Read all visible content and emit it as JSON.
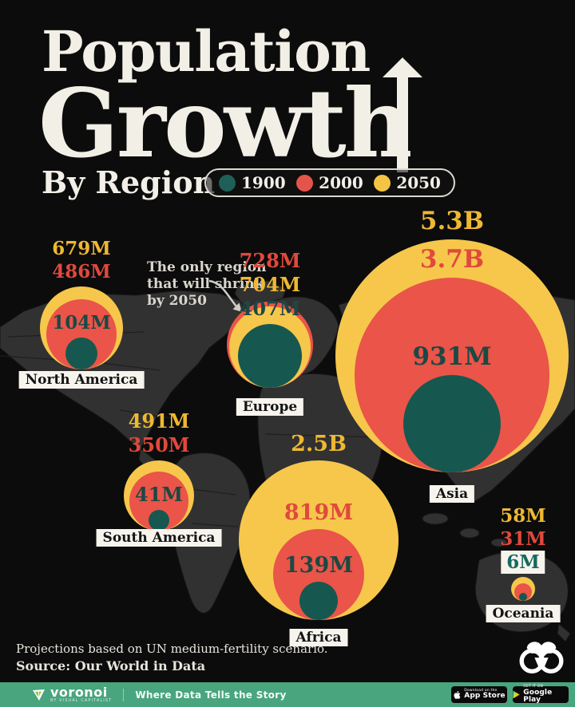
{
  "header": {
    "title_line1": "Population",
    "title_line2": "Growth",
    "subtitle": "By Region"
  },
  "legend": {
    "items": [
      {
        "year": "1900",
        "color": "#1e6057"
      },
      {
        "year": "2000",
        "color": "#e5544a"
      },
      {
        "year": "2050",
        "color": "#f4c443"
      }
    ]
  },
  "annotation": {
    "lines": [
      "The only region",
      "that will shrink",
      "by 2050"
    ]
  },
  "chart_data": {
    "type": "bubble",
    "title": "Population Growth By Region",
    "subtitle": "By Region",
    "unit": "population (millions)",
    "legend_position": "top",
    "note": "Nested circles per region, circle area proportional to population, circles share a common bottom tangent",
    "categories": [
      "North America",
      "Europe",
      "Asia",
      "South America",
      "Africa",
      "Oceania"
    ],
    "series": [
      {
        "name": "1900",
        "color": "#16584f",
        "label_color": "#1c4843",
        "values_millions": [
          104,
          407,
          931,
          41,
          139,
          6
        ],
        "labels": [
          "104M",
          "407M",
          "931M",
          "41M",
          "139M",
          "6M"
        ]
      },
      {
        "name": "2000",
        "color": "#ea5449",
        "label_color": "#e0493c",
        "values_millions": [
          486,
          728,
          3700,
          350,
          819,
          31
        ],
        "labels": [
          "486M",
          "728M",
          "3.7B",
          "350M",
          "819M",
          "31M"
        ]
      },
      {
        "name": "2050",
        "color": "#f6c74b",
        "label_color": "#eeb832",
        "values_millions": [
          679,
          704,
          5300,
          491,
          2500,
          58
        ],
        "labels": [
          "679M",
          "704M",
          "5.3B",
          "491M",
          "2.5B",
          "58M"
        ]
      }
    ]
  },
  "footer": {
    "note": "Projections based on UN medium-fertility scenario.",
    "source": "Source: Our World in Data"
  },
  "footer_bar": {
    "brand": "voronoi",
    "brand_sub": "BY VISUAL CAPITALIST",
    "tagline": "Where Data Tells the Story",
    "badges": [
      {
        "store": "app-store",
        "line1": "Download on the",
        "line2": "App Store"
      },
      {
        "store": "google-play",
        "line1": "GET IT ON",
        "line2": "Google Play"
      }
    ]
  }
}
